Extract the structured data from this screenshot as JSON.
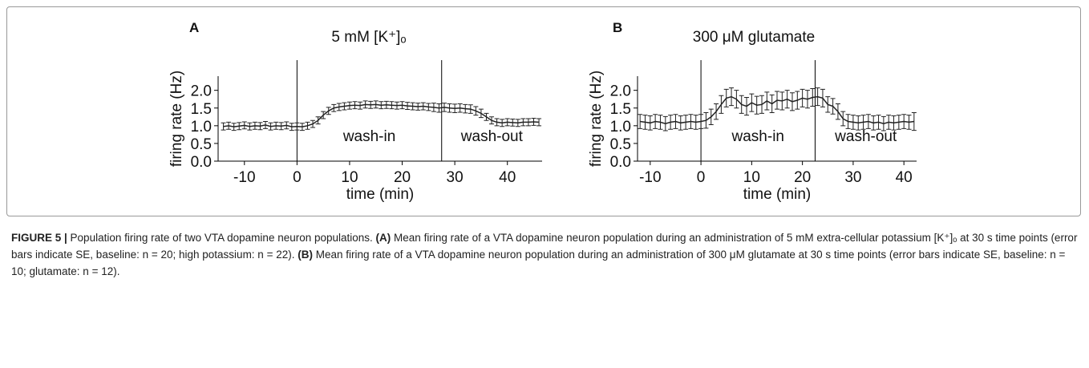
{
  "chart_data": [
    {
      "type": "line",
      "panel": "A",
      "title": "5 mM [K⁺]ₒ",
      "xlabel": "time (min)",
      "ylabel": "firing rate (Hz)",
      "x": [
        -14,
        -13,
        -12,
        -11,
        -10,
        -9,
        -8,
        -7,
        -6,
        -5,
        -4,
        -3,
        -2,
        -1,
        0,
        1,
        2,
        3,
        4,
        5,
        6,
        7,
        8,
        9,
        10,
        11,
        12,
        13,
        14,
        15,
        16,
        17,
        18,
        19,
        20,
        21,
        22,
        23,
        24,
        25,
        26,
        27,
        28,
        29,
        30,
        31,
        32,
        33,
        34,
        35,
        36,
        37,
        38,
        39,
        40,
        41,
        42,
        43,
        44,
        45,
        46
      ],
      "series": [
        {
          "color": "#222222",
          "values": [
            0.98,
            1.0,
            0.97,
            0.99,
            1.01,
            0.98,
            1.0,
            0.99,
            1.02,
            0.98,
            1.0,
            0.99,
            1.01,
            0.97,
            0.98,
            0.97,
            1.0,
            1.05,
            1.15,
            1.3,
            1.42,
            1.5,
            1.53,
            1.55,
            1.57,
            1.58,
            1.57,
            1.6,
            1.59,
            1.6,
            1.58,
            1.59,
            1.58,
            1.57,
            1.58,
            1.56,
            1.55,
            1.54,
            1.55,
            1.53,
            1.52,
            1.5,
            1.52,
            1.5,
            1.49,
            1.5,
            1.48,
            1.47,
            1.42,
            1.35,
            1.25,
            1.15,
            1.1,
            1.08,
            1.1,
            1.09,
            1.08,
            1.1,
            1.1,
            1.11,
            1.1
          ],
          "errors": [
            0.1,
            0.1,
            0.1,
            0.1,
            0.1,
            0.1,
            0.1,
            0.1,
            0.1,
            0.1,
            0.1,
            0.1,
            0.1,
            0.1,
            0.1,
            0.1,
            0.1,
            0.1,
            0.1,
            0.1,
            0.1,
            0.1,
            0.1,
            0.1,
            0.1,
            0.1,
            0.1,
            0.1,
            0.1,
            0.1,
            0.1,
            0.1,
            0.1,
            0.1,
            0.1,
            0.1,
            0.1,
            0.1,
            0.1,
            0.1,
            0.12,
            0.12,
            0.12,
            0.12,
            0.12,
            0.12,
            0.12,
            0.12,
            0.12,
            0.12,
            0.1,
            0.1,
            0.1,
            0.1,
            0.1,
            0.1,
            0.1,
            0.1,
            0.1,
            0.1,
            0.1
          ]
        }
      ],
      "vlines": [
        0,
        27.5
      ],
      "annotations": [
        "wash-in",
        "wash-out"
      ],
      "xlim": [
        -15,
        46.6
      ],
      "ylim": [
        0,
        2.4
      ],
      "xticks": [
        -10,
        0,
        10,
        20,
        30,
        40
      ],
      "yticks": [
        {
          "value": 0,
          "label": "0.0"
        },
        {
          "value": 0.5,
          "label": "0.5"
        },
        {
          "value": 1,
          "label": "1.0"
        },
        {
          "value": 1.5,
          "label": "1.5"
        },
        {
          "value": 2,
          "label": "2.0"
        }
      ]
    },
    {
      "type": "line",
      "panel": "B",
      "title": "300 μM glutamate",
      "xlabel": "time (min)",
      "ylabel": "firing rate (Hz)",
      "x": [
        -12,
        -11,
        -10,
        -9,
        -8,
        -7,
        -6,
        -5,
        -4,
        -3,
        -2,
        -1,
        0,
        1,
        2,
        3,
        4,
        5,
        6,
        7,
        8,
        9,
        10,
        11,
        12,
        13,
        14,
        15,
        16,
        17,
        18,
        19,
        20,
        21,
        22,
        23,
        24,
        25,
        26,
        27,
        28,
        29,
        30,
        31,
        32,
        33,
        34,
        35,
        36,
        37,
        38,
        39,
        40,
        41,
        42
      ],
      "series": [
        {
          "color": "#222222",
          "values": [
            1.12,
            1.1,
            1.08,
            1.12,
            1.1,
            1.06,
            1.1,
            1.12,
            1.08,
            1.1,
            1.12,
            1.1,
            1.12,
            1.15,
            1.25,
            1.4,
            1.6,
            1.78,
            1.82,
            1.75,
            1.6,
            1.55,
            1.65,
            1.58,
            1.6,
            1.7,
            1.62,
            1.72,
            1.7,
            1.75,
            1.68,
            1.72,
            1.78,
            1.75,
            1.8,
            1.82,
            1.78,
            1.6,
            1.55,
            1.4,
            1.2,
            1.12,
            1.1,
            1.08,
            1.1,
            1.12,
            1.08,
            1.1,
            1.06,
            1.1,
            1.08,
            1.1,
            1.12,
            1.1,
            1.12
          ],
          "errors": [
            0.2,
            0.2,
            0.2,
            0.2,
            0.2,
            0.2,
            0.2,
            0.2,
            0.2,
            0.2,
            0.2,
            0.2,
            0.2,
            0.22,
            0.22,
            0.22,
            0.25,
            0.25,
            0.25,
            0.25,
            0.25,
            0.25,
            0.25,
            0.25,
            0.25,
            0.25,
            0.25,
            0.25,
            0.25,
            0.25,
            0.25,
            0.25,
            0.25,
            0.25,
            0.25,
            0.25,
            0.25,
            0.22,
            0.22,
            0.22,
            0.2,
            0.2,
            0.2,
            0.2,
            0.2,
            0.2,
            0.2,
            0.2,
            0.2,
            0.2,
            0.2,
            0.2,
            0.2,
            0.2,
            0.25
          ]
        }
      ],
      "vlines": [
        0,
        22.5
      ],
      "annotations": [
        "wash-in",
        "wash-out"
      ],
      "xlim": [
        -12.5,
        42.5
      ],
      "ylim": [
        0,
        2.4
      ],
      "xticks": [
        -10,
        0,
        10,
        20,
        30,
        40
      ],
      "yticks": [
        {
          "value": 0,
          "label": "0.0"
        },
        {
          "value": 0.5,
          "label": "0.5"
        },
        {
          "value": 1,
          "label": "1.0"
        },
        {
          "value": 1.5,
          "label": "1.5"
        },
        {
          "value": 2,
          "label": "2.0"
        }
      ]
    }
  ],
  "caption": {
    "label": "FIGURE 5 |",
    "intro": " Population firing rate of two VTA dopamine neuron populations. ",
    "label_a": "(A)",
    "text_a": " Mean firing rate of a VTA dopamine neuron population during an administration of 5 mM extra-cellular potassium [K⁺]ₒ at 30 s time points (error bars indicate SE, baseline: n = 20; high potassium: n = 22). ",
    "label_b": "(B)",
    "text_b": " Mean firing rate of a VTA dopamine neuron population during an administration of 300 μM glutamate at 30 s time points (error bars indicate SE, baseline: n = 10; glutamate: n = 12)."
  }
}
